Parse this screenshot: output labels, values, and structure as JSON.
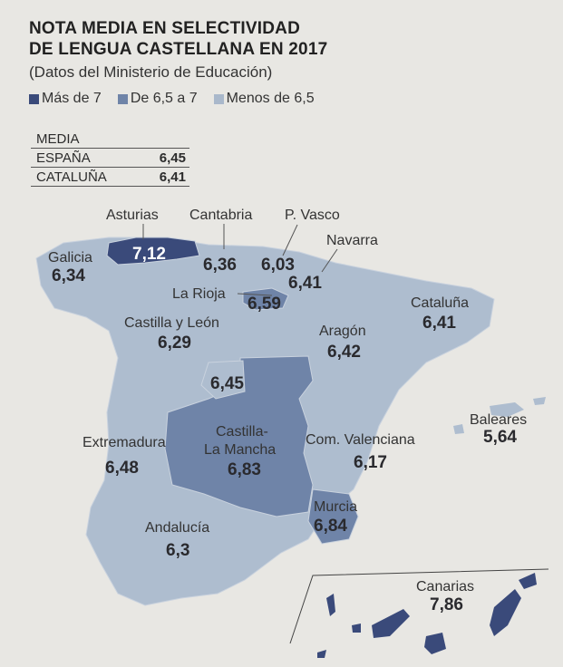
{
  "title_line1": "NOTA MEDIA EN SELECTIVIDAD",
  "title_line2": "DE LENGUA CASTELLANA EN 2017",
  "subtitle": "(Datos del Ministerio de Educación)",
  "legend": [
    {
      "label": "Más de 7",
      "color": "#3a4a7a"
    },
    {
      "label": "De 6,5 a 7",
      "color": "#6f84a8"
    },
    {
      "label": "Menos de 6,5",
      "color": "#a9b8cb"
    }
  ],
  "media_table": {
    "header": "MEDIA",
    "rows": [
      {
        "name": "ESPAÑA",
        "value": "6,45"
      },
      {
        "name": "CATALUÑA",
        "value": "6,41"
      }
    ]
  },
  "regions": {
    "asturias": {
      "name": "Asturias",
      "value": "7,12",
      "category": "Más de 7"
    },
    "cantabria": {
      "name": "Cantabria",
      "value": "6,36",
      "category": "Menos de 6,5"
    },
    "pvasco": {
      "name": "P. Vasco",
      "value": "6,03",
      "category": "Menos de 6,5"
    },
    "navarra": {
      "name": "Navarra",
      "value": "6,41",
      "category": "Menos de 6,5"
    },
    "galicia": {
      "name": "Galicia",
      "value": "6,34",
      "category": "Menos de 6,5"
    },
    "larioja": {
      "name": "La Rioja",
      "value": "6,59",
      "category": "De 6,5 a 7"
    },
    "castillayleon": {
      "name": "Castilla y León",
      "value": "6,29",
      "category": "Menos de 6,5"
    },
    "cataluna": {
      "name": "Cataluña",
      "value": "6,41",
      "category": "Menos de 6,5"
    },
    "aragon": {
      "name": "Aragón",
      "value": "6,42",
      "category": "Menos de 6,5"
    },
    "madrid": {
      "name": "",
      "value": "6,45",
      "category": "Menos de 6,5"
    },
    "baleares": {
      "name": "Baleares",
      "value": "5,64",
      "category": "Menos de 6,5"
    },
    "extremadura": {
      "name": "Extremadura",
      "value": "6,48",
      "category": "Menos de 6,5"
    },
    "castillalamancha": {
      "name1": "Castilla-",
      "name2": "La Mancha",
      "value": "6,83",
      "category": "De 6,5 a 7"
    },
    "valenciana": {
      "name": "Com. Valenciana",
      "value": "6,17",
      "category": "Menos de 6,5"
    },
    "murcia": {
      "name": "Murcia",
      "value": "6,84",
      "category": "De 6,5 a 7"
    },
    "andalucia": {
      "name": "Andalucía",
      "value": "6,3",
      "category": "Menos de 6,5"
    },
    "canarias": {
      "name": "Canarias",
      "value": "7,86",
      "category": "Más de 7"
    }
  }
}
